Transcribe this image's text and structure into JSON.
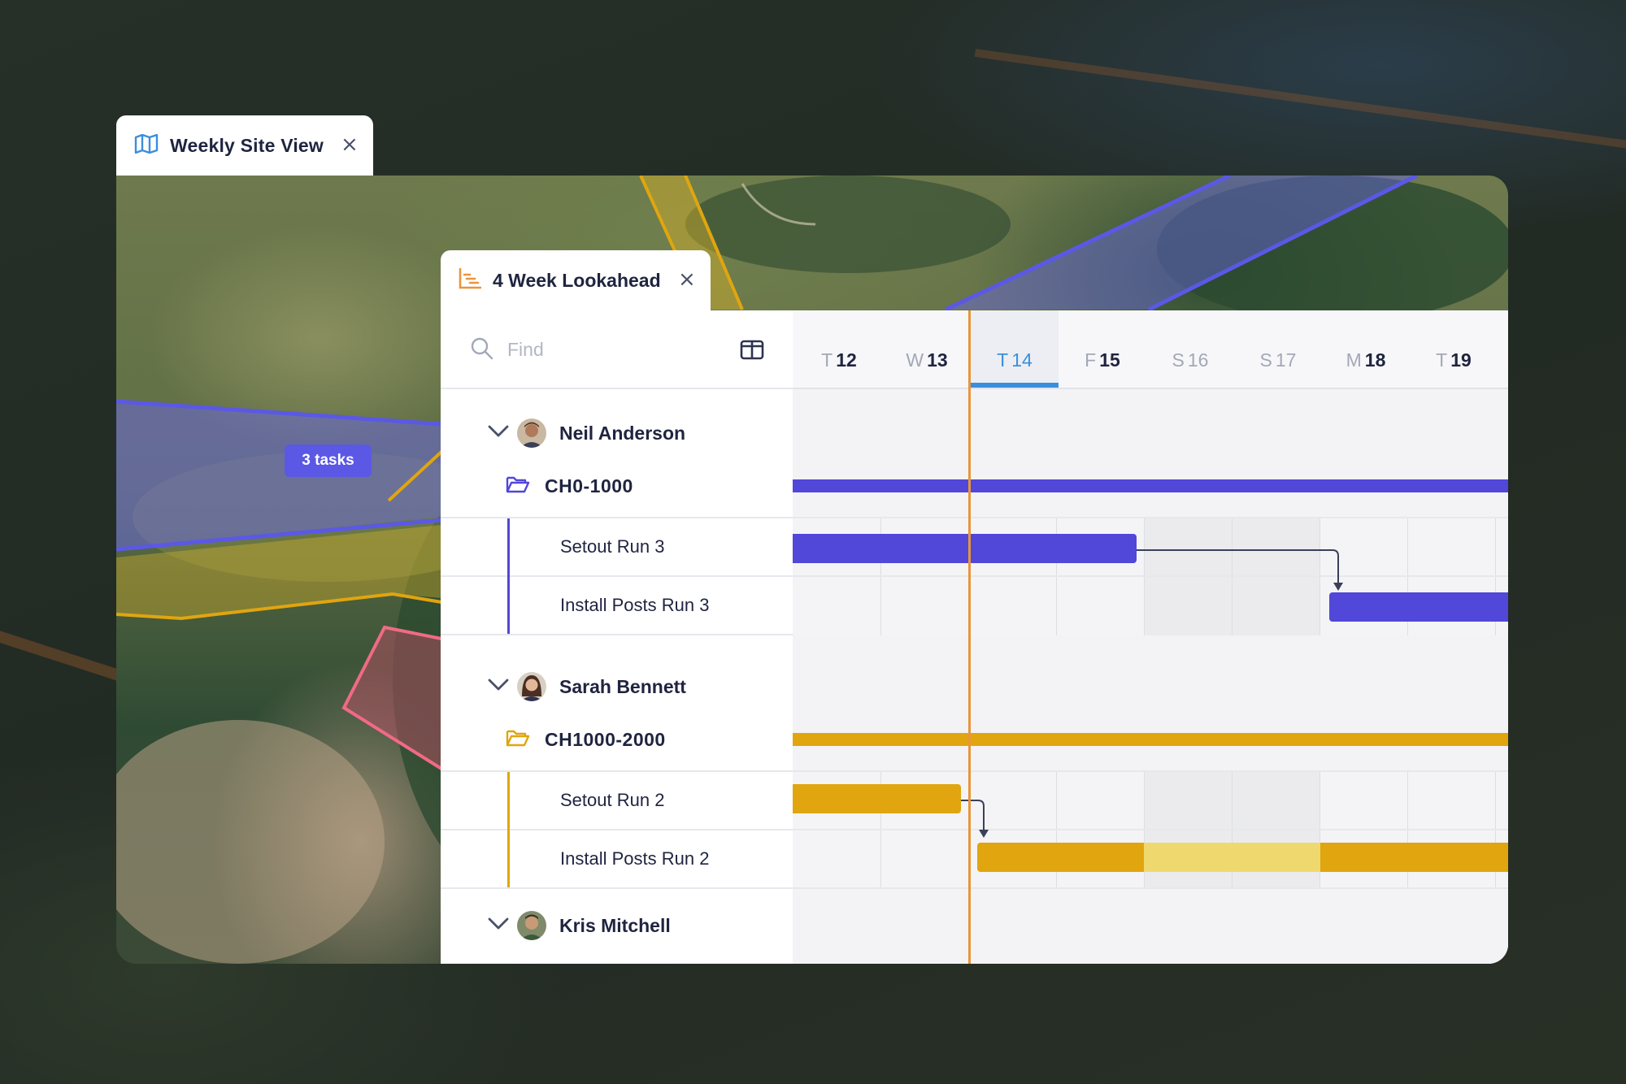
{
  "outer_tab": {
    "title": "Weekly Site View",
    "icon": "map-icon",
    "close": "×"
  },
  "map": {
    "badge": "3 tasks"
  },
  "inner_tab": {
    "title": "4 Week Lookahead",
    "icon": "gantt-chart-icon",
    "close": "×"
  },
  "search": {
    "placeholder": "Find"
  },
  "timeline": {
    "days": [
      {
        "dow": "T",
        "num": "12",
        "state": "normal"
      },
      {
        "dow": "W",
        "num": "13",
        "state": "normal"
      },
      {
        "dow": "T",
        "num": "14",
        "state": "today"
      },
      {
        "dow": "F",
        "num": "15",
        "state": "normal"
      },
      {
        "dow": "S",
        "num": "16",
        "state": "weekend"
      },
      {
        "dow": "S",
        "num": "17",
        "state": "weekend"
      },
      {
        "dow": "M",
        "num": "18",
        "state": "normal"
      },
      {
        "dow": "T",
        "num": "19",
        "state": "normal"
      }
    ]
  },
  "people": [
    {
      "name": "Neil Anderson",
      "group": "CH0-1000",
      "color": "#5147d9",
      "tasks": [
        {
          "name": "Setout Run 3"
        },
        {
          "name": "Install Posts Run 3"
        }
      ]
    },
    {
      "name": "Sarah Bennett",
      "group": "CH1000-2000",
      "color": "#e0a50f",
      "tasks": [
        {
          "name": "Setout Run 2"
        },
        {
          "name": "Install Posts Run 2"
        }
      ]
    },
    {
      "name": "Kris Mitchell"
    }
  ],
  "colors": {
    "purple": "#5147d9",
    "gold": "#e0a50f",
    "gold_light": "#efd96e",
    "today": "#3a8fdc",
    "now_line": "#e8963a",
    "text": "#1f2440"
  }
}
